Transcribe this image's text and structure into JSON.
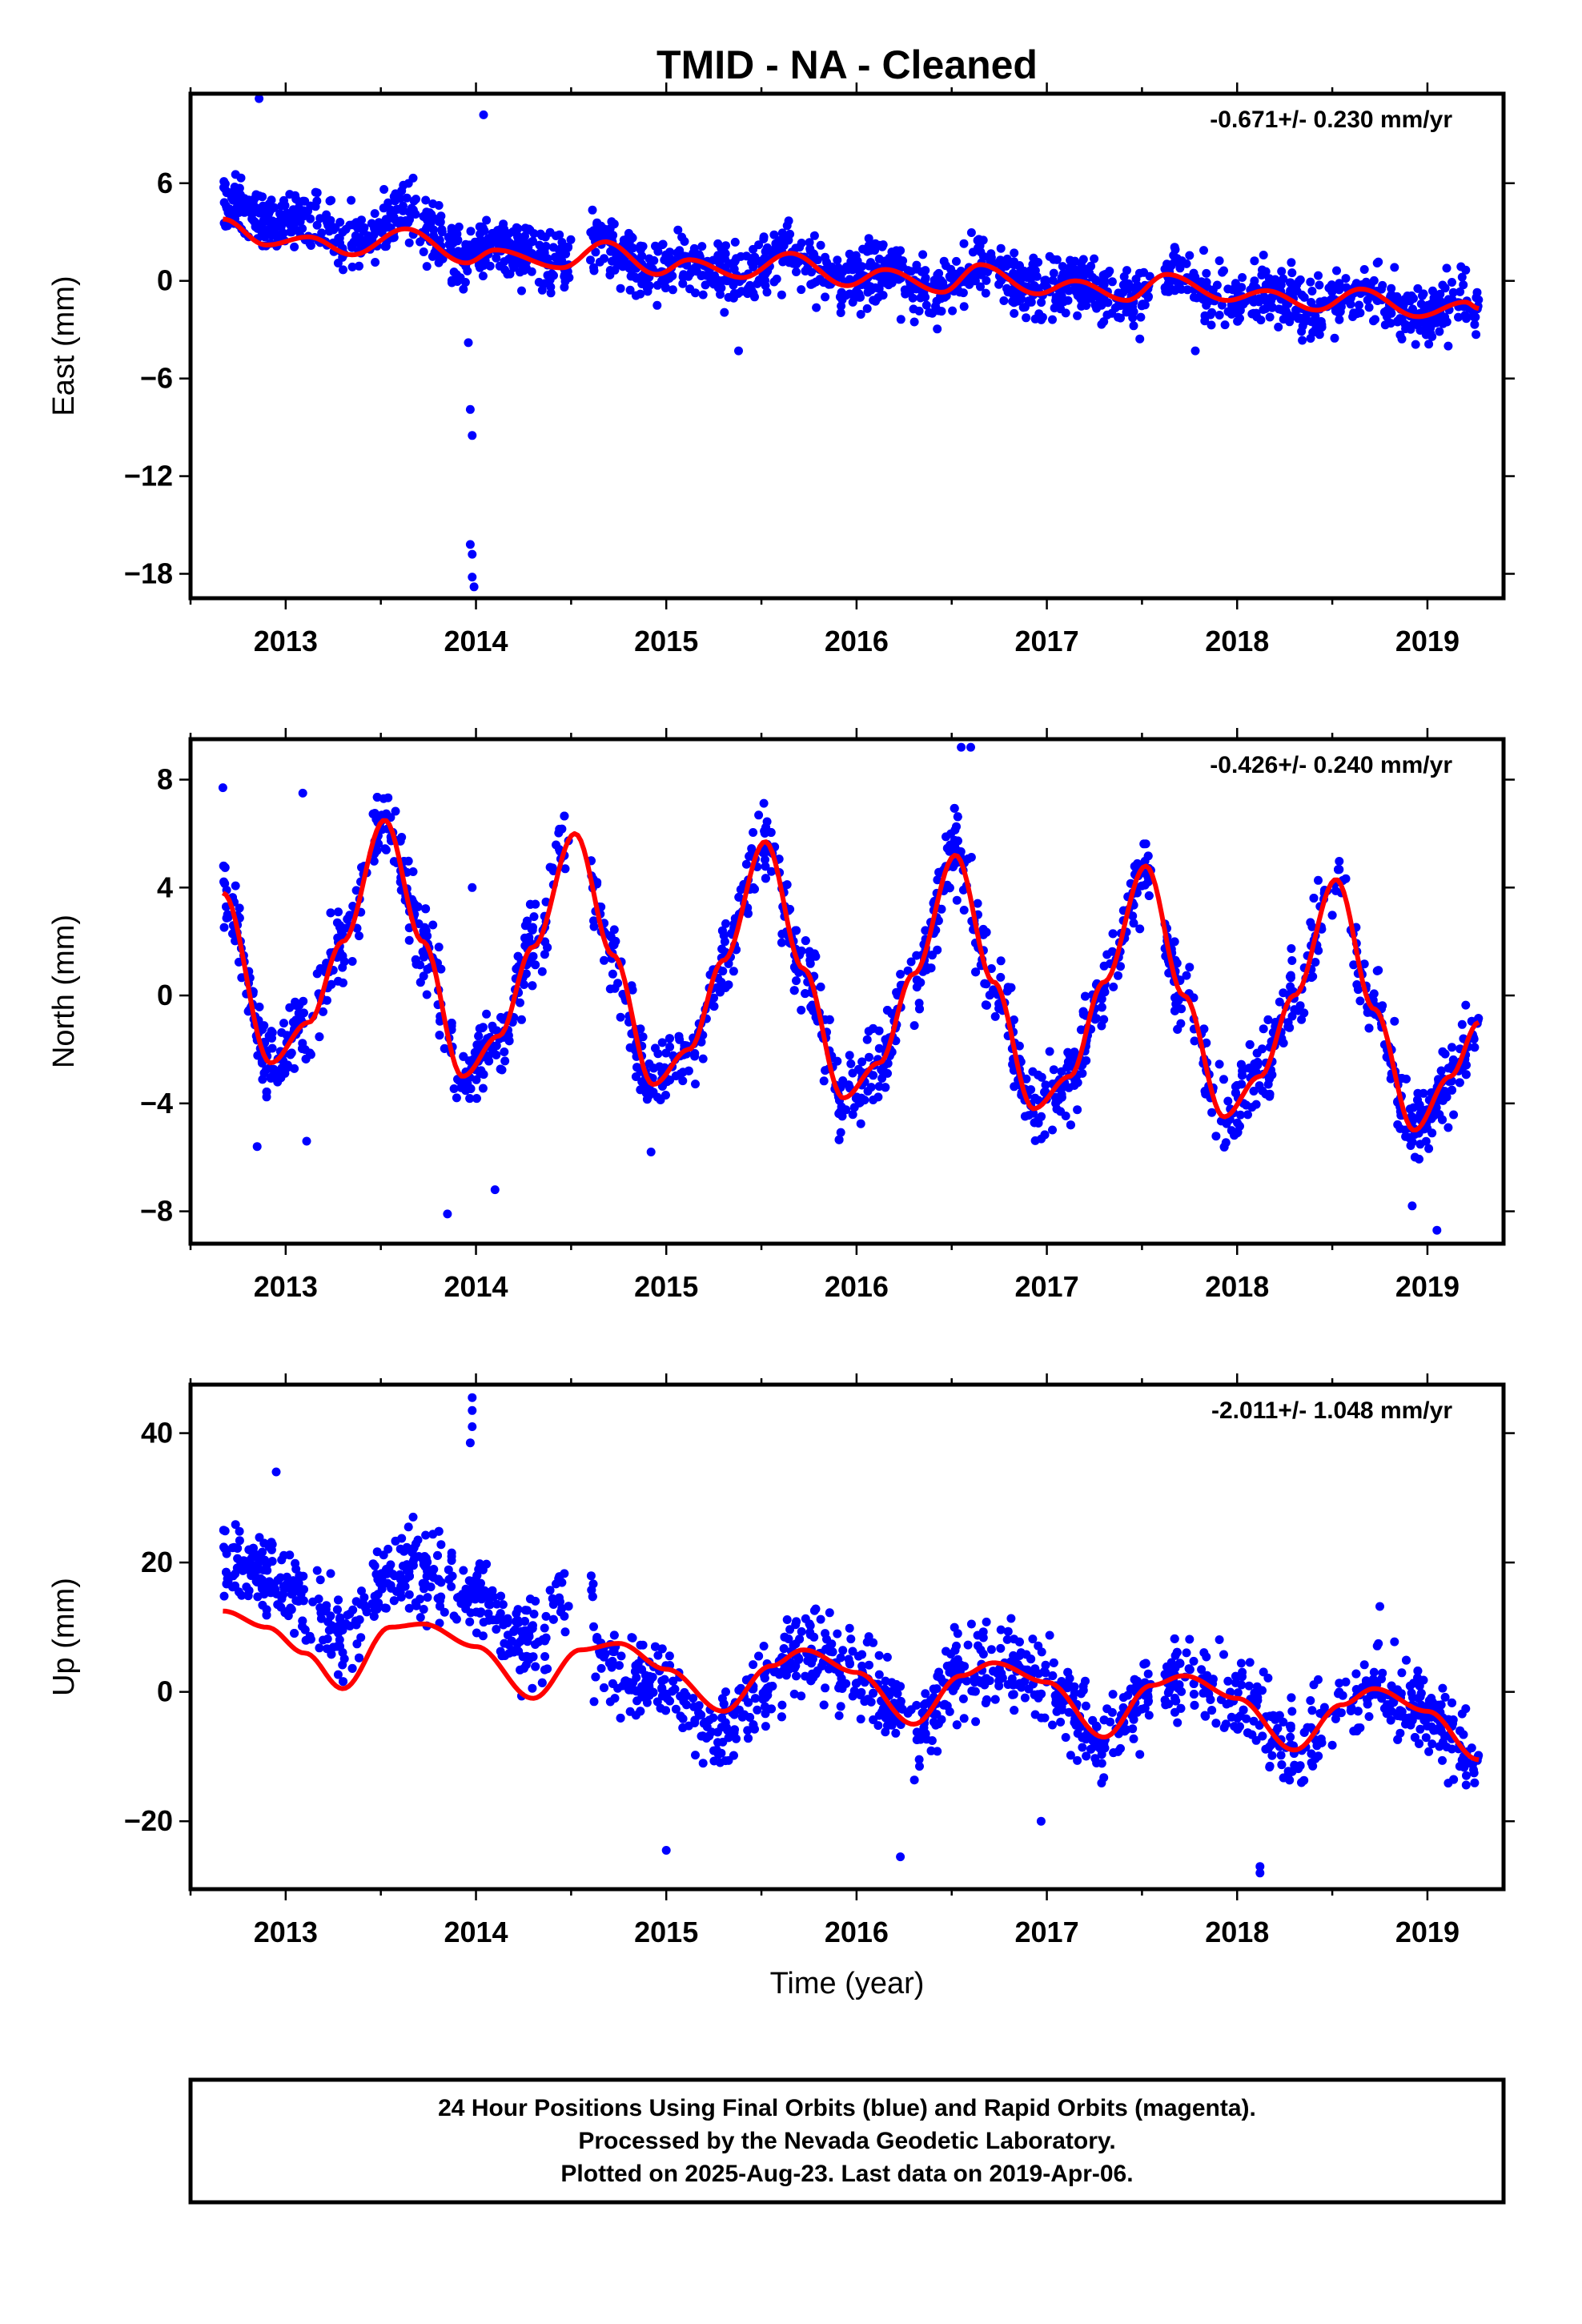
{
  "title": "TMID  - NA - Cleaned",
  "xlabel": "Time (year)",
  "footer": {
    "line1": "24 Hour Positions Using Final Orbits (blue) and Rapid Orbits (magenta).",
    "line2": "Processed by the Nevada Geodetic Laboratory.",
    "line3": "Plotted on 2025-Aug-23. Last data on 2019-Apr-06."
  },
  "colors": {
    "points": "#0000ff",
    "model": "#ff0000",
    "frame": "#000000"
  },
  "chart_data": [
    {
      "type": "scatter",
      "panel": "east",
      "ylabel": "East (mm)",
      "rate": "-0.671+/- 0.230 mm/yr",
      "xlim": [
        2012.5,
        2019.4
      ],
      "ylim": [
        -19.5,
        11.5
      ],
      "yticks": [
        6,
        0,
        -6,
        -12,
        -18
      ],
      "ytick_labels": [
        "6",
        "0",
        "−6",
        "−12",
        "−18"
      ],
      "xticks": [
        2013,
        2014,
        2015,
        2016,
        2017,
        2018,
        2019
      ],
      "xtick_labels": [
        "2013",
        "2014",
        "2015",
        "2016",
        "2017",
        "2018",
        "2019"
      ],
      "point_spread_mm": 1.3,
      "series": [
        {
          "name": "Final Orbits",
          "color": "#0000ff",
          "style": "points"
        },
        {
          "name": "model",
          "color": "#ff0000",
          "style": "line"
        }
      ],
      "model": {
        "x": [
          2012.67,
          2012.9,
          2013.12,
          2013.35,
          2013.63,
          2013.95,
          2014.1,
          2014.45,
          2014.68,
          2014.95,
          2015.12,
          2015.4,
          2015.65,
          2015.95,
          2016.15,
          2016.45,
          2016.65,
          2016.95,
          2017.15,
          2017.42,
          2017.63,
          2017.95,
          2018.15,
          2018.42,
          2018.65,
          2018.95,
          2019.2,
          2019.27
        ],
        "y": [
          3.8,
          2.2,
          2.7,
          1.6,
          3.2,
          1.1,
          1.9,
          0.8,
          2.4,
          0.4,
          1.3,
          0.2,
          1.7,
          -0.3,
          0.7,
          -0.7,
          1.0,
          -0.8,
          0.0,
          -1.2,
          0.4,
          -1.2,
          -0.6,
          -1.8,
          -0.5,
          -2.2,
          -1.3,
          -1.7
        ]
      },
      "outliers": [
        {
          "x": 2013.97,
          "y": -16.2
        },
        {
          "x": 2013.98,
          "y": -16.8
        },
        {
          "x": 2013.98,
          "y": -18.2
        },
        {
          "x": 2013.99,
          "y": -18.8
        },
        {
          "x": 2013.97,
          "y": -7.9
        },
        {
          "x": 2013.98,
          "y": -9.5
        },
        {
          "x": 2013.96,
          "y": -3.8
        },
        {
          "x": 2014.04,
          "y": 10.2
        },
        {
          "x": 2012.86,
          "y": 11.2
        },
        {
          "x": 2015.38,
          "y": -4.3
        },
        {
          "x": 2017.78,
          "y": -4.3
        }
      ]
    },
    {
      "type": "scatter",
      "panel": "north",
      "ylabel": "North (mm)",
      "rate": "-0.426+/- 0.240 mm/yr",
      "xlim": [
        2012.5,
        2019.4
      ],
      "ylim": [
        -9.2,
        9.5
      ],
      "yticks": [
        8,
        4,
        0,
        -4,
        -8
      ],
      "ytick_labels": [
        "8",
        "4",
        "0",
        "−4",
        "−8"
      ],
      "xticks": [
        2013,
        2014,
        2015,
        2016,
        2017,
        2018,
        2019
      ],
      "xtick_labels": [
        "2013",
        "2014",
        "2015",
        "2016",
        "2017",
        "2018",
        "2019"
      ],
      "point_spread_mm": 1.0,
      "series": [
        {
          "name": "Final Orbits",
          "color": "#0000ff",
          "style": "points"
        },
        {
          "name": "model",
          "color": "#ff0000",
          "style": "line"
        }
      ],
      "model": {
        "x": [
          2012.67,
          2012.92,
          2013.12,
          2013.3,
          2013.52,
          2013.72,
          2013.93,
          2014.12,
          2014.3,
          2014.52,
          2014.72,
          2014.93,
          2015.12,
          2015.3,
          2015.52,
          2015.72,
          2015.93,
          2016.12,
          2016.3,
          2016.52,
          2016.72,
          2016.93,
          2017.12,
          2017.3,
          2017.52,
          2017.72,
          2017.93,
          2018.12,
          2018.3,
          2018.52,
          2018.72,
          2018.93,
          2019.12,
          2019.27
        ],
        "y": [
          3.8,
          -2.5,
          -1.0,
          2.0,
          6.5,
          2.0,
          -3.0,
          -1.5,
          1.8,
          6.0,
          1.5,
          -3.3,
          -2.0,
          1.3,
          5.7,
          1.0,
          -3.8,
          -2.5,
          0.8,
          5.2,
          0.5,
          -4.2,
          -3.0,
          0.5,
          4.8,
          0.0,
          -4.5,
          -3.0,
          0.0,
          4.3,
          -0.5,
          -5.0,
          -3.0,
          -1.0
        ]
      },
      "outliers": [
        {
          "x": 2012.67,
          "y": 7.7
        },
        {
          "x": 2012.85,
          "y": -5.6
        },
        {
          "x": 2013.09,
          "y": 7.5
        },
        {
          "x": 2013.11,
          "y": -5.4
        },
        {
          "x": 2013.85,
          "y": -8.1
        },
        {
          "x": 2013.98,
          "y": 4.0
        },
        {
          "x": 2014.1,
          "y": -7.2
        },
        {
          "x": 2014.92,
          "y": -5.8
        },
        {
          "x": 2016.55,
          "y": 9.2
        },
        {
          "x": 2016.6,
          "y": 9.2
        },
        {
          "x": 2019.05,
          "y": -8.7
        },
        {
          "x": 2018.92,
          "y": -7.8
        }
      ]
    },
    {
      "type": "scatter",
      "panel": "up",
      "ylabel": "Up (mm)",
      "rate": "-2.011+/- 1.048 mm/yr",
      "xlim": [
        2012.5,
        2019.4
      ],
      "ylim": [
        -30.5,
        47.5
      ],
      "yticks": [
        40,
        20,
        0,
        -20
      ],
      "ytick_labels": [
        "40",
        "20",
        "0",
        "−20"
      ],
      "xticks": [
        2013,
        2014,
        2015,
        2016,
        2017,
        2018,
        2019
      ],
      "xtick_labels": [
        "2013",
        "2014",
        "2015",
        "2016",
        "2017",
        "2018",
        "2019"
      ],
      "point_spread_mm": 4.5,
      "series": [
        {
          "name": "Final Orbits",
          "color": "#0000ff",
          "style": "points"
        },
        {
          "name": "model",
          "color": "#ff0000",
          "style": "line"
        }
      ],
      "model": {
        "x": [
          2012.67,
          2012.9,
          2013.1,
          2013.3,
          2013.55,
          2013.72,
          2014.0,
          2014.3,
          2014.55,
          2014.75,
          2015.0,
          2015.3,
          2015.55,
          2015.72,
          2016.0,
          2016.3,
          2016.55,
          2016.72,
          2017.0,
          2017.3,
          2017.55,
          2017.72,
          2018.0,
          2018.3,
          2018.55,
          2018.72,
          2019.0,
          2019.27
        ],
        "y": [
          12.5,
          10.0,
          6.0,
          0.5,
          10.0,
          10.5,
          7.0,
          -1.0,
          6.5,
          7.5,
          3.5,
          -3.0,
          4.0,
          6.5,
          3.0,
          -5.0,
          2.5,
          4.5,
          1.5,
          -7.0,
          1.0,
          2.5,
          -1.0,
          -9.0,
          -2.0,
          0.5,
          -3.0,
          -10.5
        ]
      },
      "outliers": [
        {
          "x": 2013.98,
          "y": 45.5
        },
        {
          "x": 2013.98,
          "y": 43.5
        },
        {
          "x": 2013.98,
          "y": 41.0
        },
        {
          "x": 2013.97,
          "y": 38.5
        },
        {
          "x": 2012.95,
          "y": 34.0
        },
        {
          "x": 2015.0,
          "y": -24.5
        },
        {
          "x": 2016.23,
          "y": -25.5
        },
        {
          "x": 2018.12,
          "y": -27.0
        },
        {
          "x": 2018.12,
          "y": -28.0
        },
        {
          "x": 2016.97,
          "y": -20.0
        },
        {
          "x": 2018.75,
          "y": 13.2
        }
      ]
    }
  ]
}
